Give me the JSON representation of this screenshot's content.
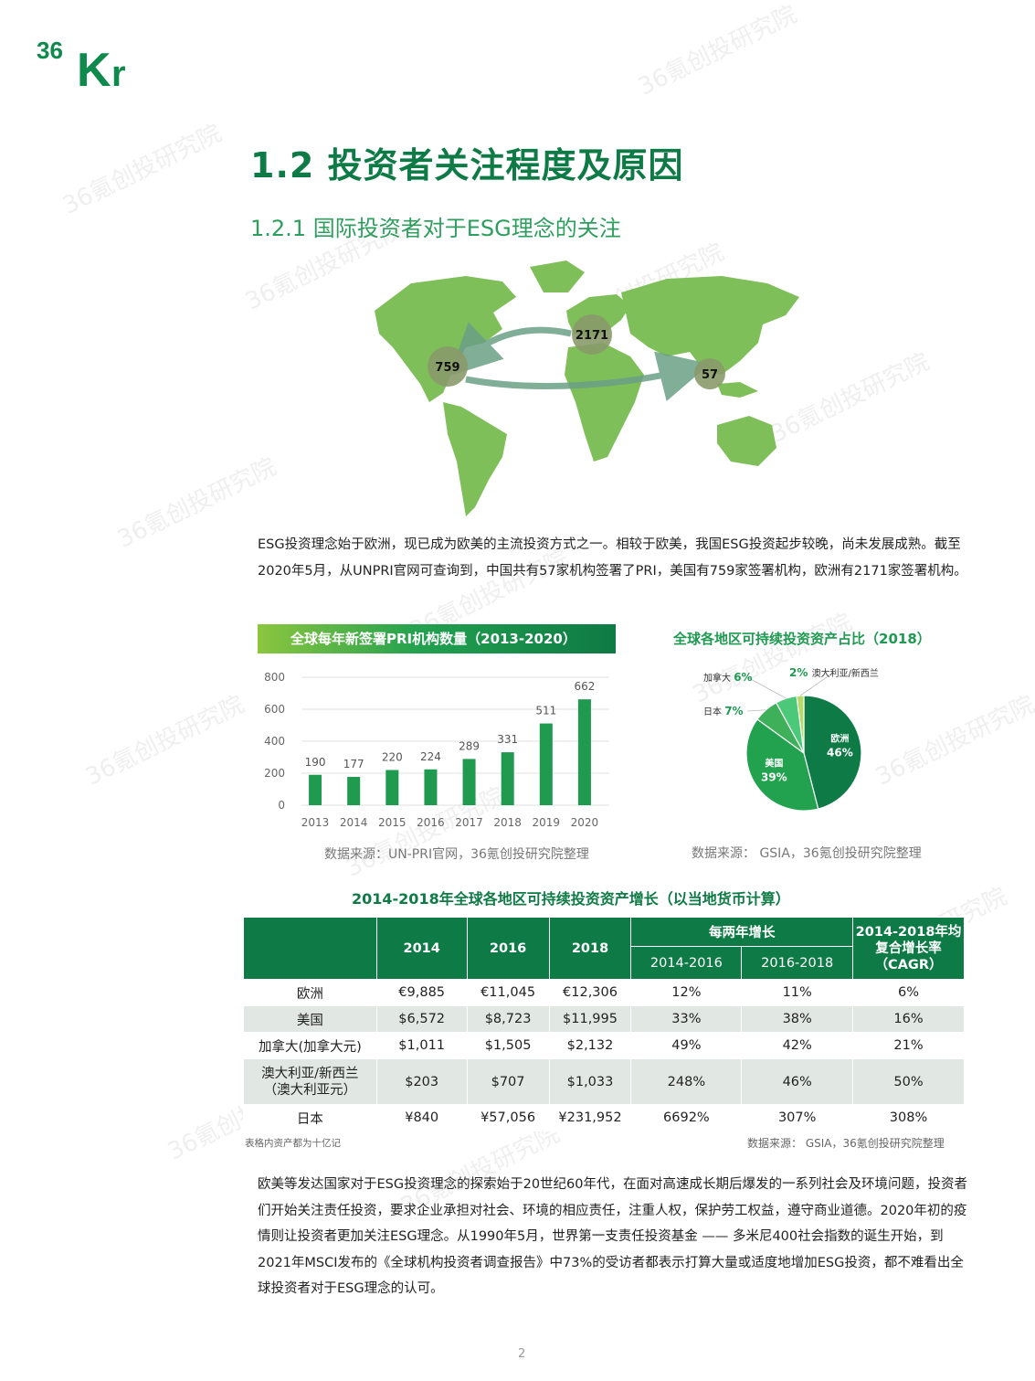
{
  "logo": {
    "text": "36Kr"
  },
  "watermark": "36氪创投研究院",
  "heading": "1.2 投资者关注程度及原因",
  "subheading": "1.2.1 国际投资者对于ESG理念的关注",
  "map": {
    "bubbles": [
      {
        "label": "2171",
        "region": "Europe"
      },
      {
        "label": "759",
        "region": "USA"
      },
      {
        "label": "57",
        "region": "China"
      }
    ],
    "land_color": "#7fbf59"
  },
  "para1": "ESG投资理念始于欧洲，现已成为欧美的主流投资方式之一。相较于欧美，我国ESG投资起步较晚，尚未发展成熟。截至2020年5月，从UNPRI官网可查询到，中国共有57家机构签署了PRI，美国有759家签署机构，欧洲有2171家签署机构。",
  "bar_chart_title": "全球每年新签署PRI机构数量（2013-2020）",
  "bar_source": "数据来源：UN-PRI官网，36氪创投研究院整理",
  "pie_chart_title": "全球各地区可持续投资资产占比（2018）",
  "pie_source": "数据来源： GSIA，36氪创投研究院整理",
  "chart_data": [
    {
      "type": "bar",
      "title": "全球每年新签署PRI机构数量（2013-2020）",
      "categories": [
        "2013",
        "2014",
        "2015",
        "2016",
        "2017",
        "2018",
        "2019",
        "2020"
      ],
      "values": [
        190,
        177,
        220,
        224,
        289,
        331,
        511,
        662
      ],
      "ylim": [
        0,
        800
      ],
      "yticks": [
        "0",
        "200",
        "400",
        "600",
        "800"
      ],
      "grid": true,
      "color": "#1f9a4f"
    },
    {
      "type": "pie",
      "title": "全球各地区可持续投资资产占比（2018）",
      "slices": [
        {
          "name": "欧洲",
          "value": 46,
          "label": "46%",
          "color": "#0e7a45"
        },
        {
          "name": "美国",
          "value": 39,
          "label": "39%",
          "color": "#22a14f"
        },
        {
          "name": "日本",
          "value": 7,
          "label": "7%",
          "color": "#3fb05a"
        },
        {
          "name": "加拿大",
          "value": 6,
          "label": "6%",
          "color": "#4cc978"
        },
        {
          "name": "澳大利亚/新西兰",
          "value": 2,
          "label": "2%",
          "color": "#b7d968"
        }
      ]
    }
  ],
  "table": {
    "title": "2014-2018年全球各地区可持续投资资产增长（以当地货币计算）",
    "headers": {
      "y2014": "2014",
      "y2016": "2016",
      "y2018": "2018",
      "growth": "每两年增长",
      "g1": "2014-2016",
      "g2": "2016-2018",
      "cagr": "2014-2018年均复合增长率（CAGR）"
    },
    "rows": [
      {
        "region": "欧洲",
        "v2014": "€9,885",
        "v2016": "€11,045",
        "v2018": "€12,306",
        "g1": "12%",
        "g2": "11%",
        "cagr": "6%"
      },
      {
        "region": "美国",
        "v2014": "$6,572",
        "v2016": "$8,723",
        "v2018": "$11,995",
        "g1": "33%",
        "g2": "38%",
        "cagr": "16%"
      },
      {
        "region": "加拿大(加拿大元)",
        "v2014": "$1,011",
        "v2016": "$1,505",
        "v2018": "$2,132",
        "g1": "49%",
        "g2": "42%",
        "cagr": "21%"
      },
      {
        "region": "澳大利亚/新西兰（澳大利亚元）",
        "v2014": "$203",
        "v2016": "$707",
        "v2018": "$1,033",
        "g1": "248%",
        "g2": "46%",
        "cagr": "50%"
      },
      {
        "region": "日本",
        "v2014": "¥840",
        "v2016": "¥57,056",
        "v2018": "¥231,952",
        "g1": "6692%",
        "g2": "307%",
        "cagr": "308%"
      }
    ],
    "note": "表格内资产都为十亿记",
    "source": "数据来源： GSIA，36氪创投研究院整理"
  },
  "para2": "欧美等发达国家对于ESG投资理念的探索始于20世纪60年代，在面对高速成长期后爆发的一系列社会及环境问题，投资者们开始关注责任投资，要求企业承担对社会、环境的相应责任，注重人权，保护劳工权益，遵守商业道德。2020年初的疫情则让投资者更加关注ESG理念。从1990年5月，世界第一支责任投资基金 —— 多米尼400社会指数的诞生开始，到2021年MSCI发布的《全球机构投资者调查报告》中73%的受访者都表示打算大量或适度地增加ESG投资，都不难看出全球投资者对于ESG理念的认可。",
  "page_number": "2"
}
